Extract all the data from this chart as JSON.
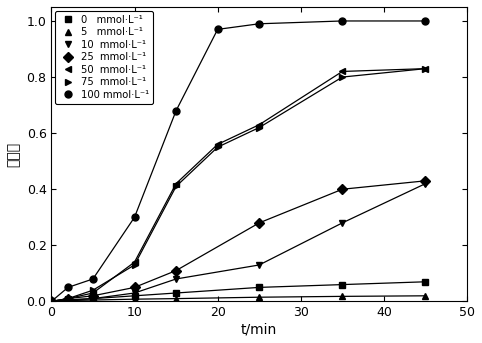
{
  "title": "",
  "xlabel": "t/min",
  "ylabel": "去除率",
  "xlim": [
    0,
    50
  ],
  "ylim": [
    0,
    1.05
  ],
  "yticks": [
    0.0,
    0.2,
    0.4,
    0.6,
    0.8,
    1.0
  ],
  "xticks": [
    0,
    10,
    20,
    30,
    40,
    50
  ],
  "series": [
    {
      "label": "0   mmol·L⁻¹",
      "marker": "s",
      "x": [
        0,
        2,
        5,
        10,
        15,
        25,
        35,
        45
      ],
      "y": [
        0.0,
        0.005,
        0.01,
        0.02,
        0.03,
        0.05,
        0.06,
        0.07
      ]
    },
    {
      "label": "5   mmol·L⁻¹",
      "marker": "^",
      "x": [
        0,
        2,
        5,
        10,
        15,
        25,
        35,
        45
      ],
      "y": [
        0.0,
        0.003,
        0.005,
        0.008,
        0.01,
        0.015,
        0.018,
        0.02
      ]
    },
    {
      "label": "10  mmol·L⁻¹",
      "marker": "v",
      "x": [
        0,
        2,
        5,
        10,
        15,
        25,
        35,
        45
      ],
      "y": [
        0.0,
        0.005,
        0.01,
        0.03,
        0.08,
        0.13,
        0.28,
        0.42
      ]
    },
    {
      "label": "25  mmol·L⁻¹",
      "marker": "D",
      "x": [
        0,
        2,
        5,
        10,
        15,
        25,
        35,
        45
      ],
      "y": [
        0.0,
        0.01,
        0.02,
        0.05,
        0.11,
        0.28,
        0.4,
        0.43
      ]
    },
    {
      "label": "50  mmol·L⁻¹",
      "marker": "<",
      "x": [
        0,
        2,
        5,
        10,
        15,
        20,
        25,
        35,
        45
      ],
      "y": [
        0.0,
        0.01,
        0.03,
        0.14,
        0.42,
        0.56,
        0.63,
        0.82,
        0.83
      ]
    },
    {
      "label": "75  mmol·L⁻¹",
      "marker": ">",
      "x": [
        0,
        2,
        5,
        10,
        15,
        20,
        25,
        35,
        45
      ],
      "y": [
        0.0,
        0.01,
        0.04,
        0.13,
        0.41,
        0.55,
        0.62,
        0.8,
        0.83
      ]
    },
    {
      "label": "100 mmol·L⁻¹",
      "marker": "o",
      "x": [
        0,
        2,
        5,
        10,
        15,
        20,
        25,
        35,
        45
      ],
      "y": [
        0.0,
        0.05,
        0.08,
        0.3,
        0.68,
        0.97,
        0.99,
        1.0,
        1.0
      ]
    }
  ]
}
